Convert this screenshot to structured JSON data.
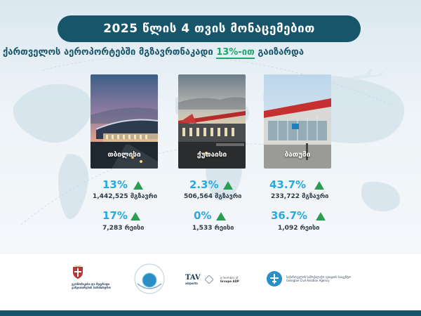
{
  "header": {
    "title": "2025 წლის 4 თვის მონაცემებით",
    "subtitle_lead": "ქართველოს აეროპორტებში",
    "subtitle_mid": "მგზავრთნაკადი",
    "subtitle_highlight": "13%-ით",
    "subtitle_tail": "გაიზარდა"
  },
  "airports": [
    {
      "name": "თბილისი",
      "passenger_growth": "13%",
      "passengers": "1,442,525",
      "passengers_unit": "მგზავრი",
      "flight_growth": "17%",
      "flights": "7,283",
      "flights_unit": "რეისი"
    },
    {
      "name": "ქუთაისი",
      "passenger_growth": "2.3%",
      "passengers": "506,564",
      "passengers_unit": "მგზავრი",
      "flight_growth": "0%",
      "flights": "1,533",
      "flights_unit": "რეისი"
    },
    {
      "name": "ბათუმი",
      "passenger_growth": "43.7%",
      "passengers": "233,722",
      "passengers_unit": "მგზავრი",
      "flight_growth": "36.7%",
      "flights": "1,092",
      "flights_unit": "რეისი"
    }
  ],
  "colors": {
    "primary": "#17556b",
    "growth_percent": "#2aa9e0",
    "up_arrow": "#2a9d52",
    "highlight": "#1fa66a"
  },
  "footer": {
    "ministry_text": "ეკონომიკისა და მდგრადი განვითარების სამინისტრო",
    "tav_logo": "TAV",
    "tav_sub": "airports",
    "adp_line1": "a member of",
    "adp_line2": "Groupe ADP",
    "gcaa_ka": "საქართველოს სამოქალაქო ავიაციის სააგენტო",
    "gcaa_en": "Georgian Civil Aviation Agency",
    "icons": [
      "coat-of-arms-icon",
      "circle-emblem-icon",
      "tav-logo-icon",
      "adp-diamond-icon",
      "plane-cross-icon"
    ]
  }
}
